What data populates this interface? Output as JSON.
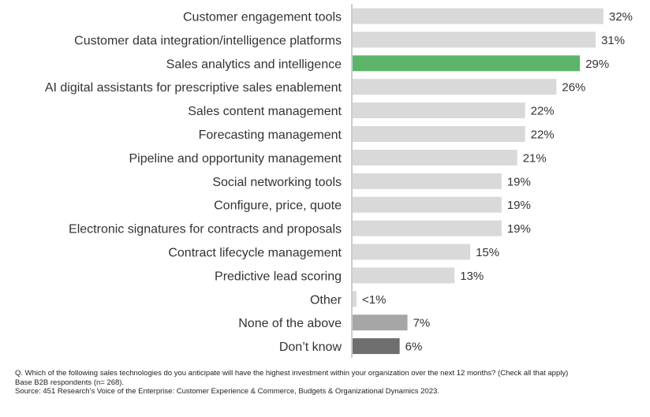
{
  "chart_data": {
    "type": "bar",
    "orientation": "horizontal",
    "categories": [
      "Customer engagement tools",
      "Customer data integration/intelligence platforms",
      "Sales analytics and intelligence",
      "AI digital assistants for prescriptive sales enablement",
      "Sales content management",
      "Forecasting management",
      "Pipeline and opportunity management",
      "Social networking tools",
      "Configure, price, quote",
      "Electronic signatures for contracts and proposals",
      "Contract lifecycle management",
      "Predictive lead scoring",
      "Other",
      "None of the above",
      "Don’t know"
    ],
    "values": [
      32,
      31,
      29,
      26,
      22,
      22,
      21,
      19,
      19,
      19,
      15,
      13,
      0.5,
      7,
      6
    ],
    "value_labels": [
      "32%",
      "31%",
      "29%",
      "26%",
      "22%",
      "22%",
      "21%",
      "19%",
      "19%",
      "19%",
      "15%",
      "13%",
      "<1%",
      "7%",
      "6%"
    ],
    "bar_colors": [
      "#d9d9d9",
      "#d9d9d9",
      "#5cb46b",
      "#d9d9d9",
      "#d9d9d9",
      "#d9d9d9",
      "#d9d9d9",
      "#d9d9d9",
      "#d9d9d9",
      "#d9d9d9",
      "#d9d9d9",
      "#d9d9d9",
      "#d9d9d9",
      "#a6a6a6",
      "#6e6e6e"
    ],
    "axis_color": "#999999",
    "xlim": [
      0,
      32
    ],
    "grid": false,
    "legend": "none"
  },
  "notes": {
    "question": "Q. Which of the following sales technologies do you anticipate will have the highest investment within your organization over the next 12 months? (Check all that apply)",
    "base": "Base B2B respondents (n= 268).",
    "source": "Source: 451 Research’s Voice of the Enterprise: Customer Experience & Commerce, Budgets & Organizational Dynamics 2023."
  }
}
